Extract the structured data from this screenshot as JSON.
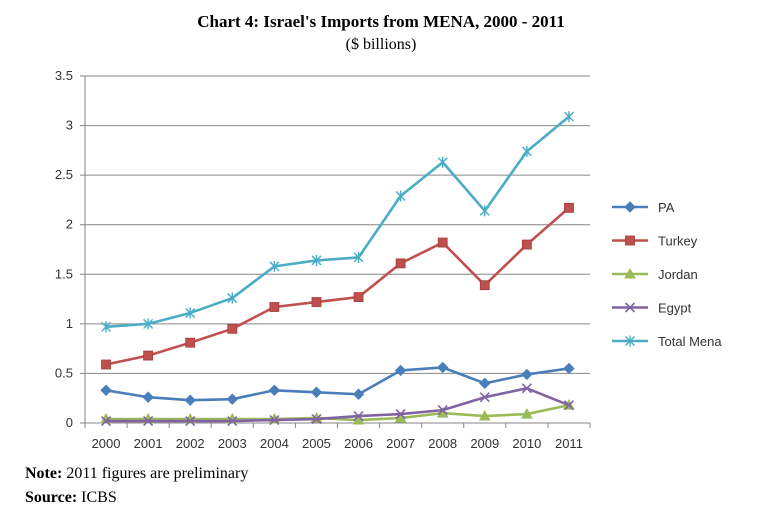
{
  "chart_data": {
    "type": "line",
    "title": "Chart 4: Israel's Imports from MENA, 2000 - 2011",
    "subtitle": "($ billions)",
    "categories": [
      "2000",
      "2001",
      "2002",
      "2003",
      "2004",
      "2005",
      "2006",
      "2007",
      "2008",
      "2009",
      "2010",
      "2011"
    ],
    "ylim": [
      0,
      3.5
    ],
    "yticks": [
      "0",
      "0.5",
      "1",
      "1.5",
      "2",
      "2.5",
      "3",
      "3.5"
    ],
    "grid": true,
    "legend_position": "right",
    "series": [
      {
        "name": "PA",
        "color": "#4a7ebb",
        "marker": "diamond",
        "values": [
          0.33,
          0.26,
          0.23,
          0.24,
          0.33,
          0.31,
          0.29,
          0.53,
          0.56,
          0.4,
          0.49,
          0.55
        ]
      },
      {
        "name": "Turkey",
        "color": "#c0504d",
        "marker": "square",
        "values": [
          0.59,
          0.68,
          0.81,
          0.95,
          1.17,
          1.22,
          1.27,
          1.61,
          1.82,
          1.39,
          1.8,
          2.17
        ]
      },
      {
        "name": "Jordan",
        "color": "#9bbb59",
        "marker": "triangle",
        "values": [
          0.04,
          0.04,
          0.04,
          0.04,
          0.04,
          0.05,
          0.03,
          0.05,
          0.1,
          0.07,
          0.09,
          0.18
        ]
      },
      {
        "name": "Egypt",
        "color": "#8064a2",
        "marker": "x",
        "values": [
          0.02,
          0.02,
          0.02,
          0.02,
          0.03,
          0.04,
          0.07,
          0.09,
          0.13,
          0.26,
          0.35,
          0.18
        ]
      },
      {
        "name": "Total Mena",
        "color": "#4bacc6",
        "marker": "star",
        "values": [
          0.97,
          1.0,
          1.11,
          1.26,
          1.58,
          1.64,
          1.67,
          2.29,
          2.63,
          2.14,
          2.74,
          3.09
        ]
      }
    ]
  },
  "footnotes": {
    "note_label": "Note:",
    "note_text": " 2011 figures are preliminary",
    "source_label": "Source:",
    "source_text": " ICBS"
  }
}
